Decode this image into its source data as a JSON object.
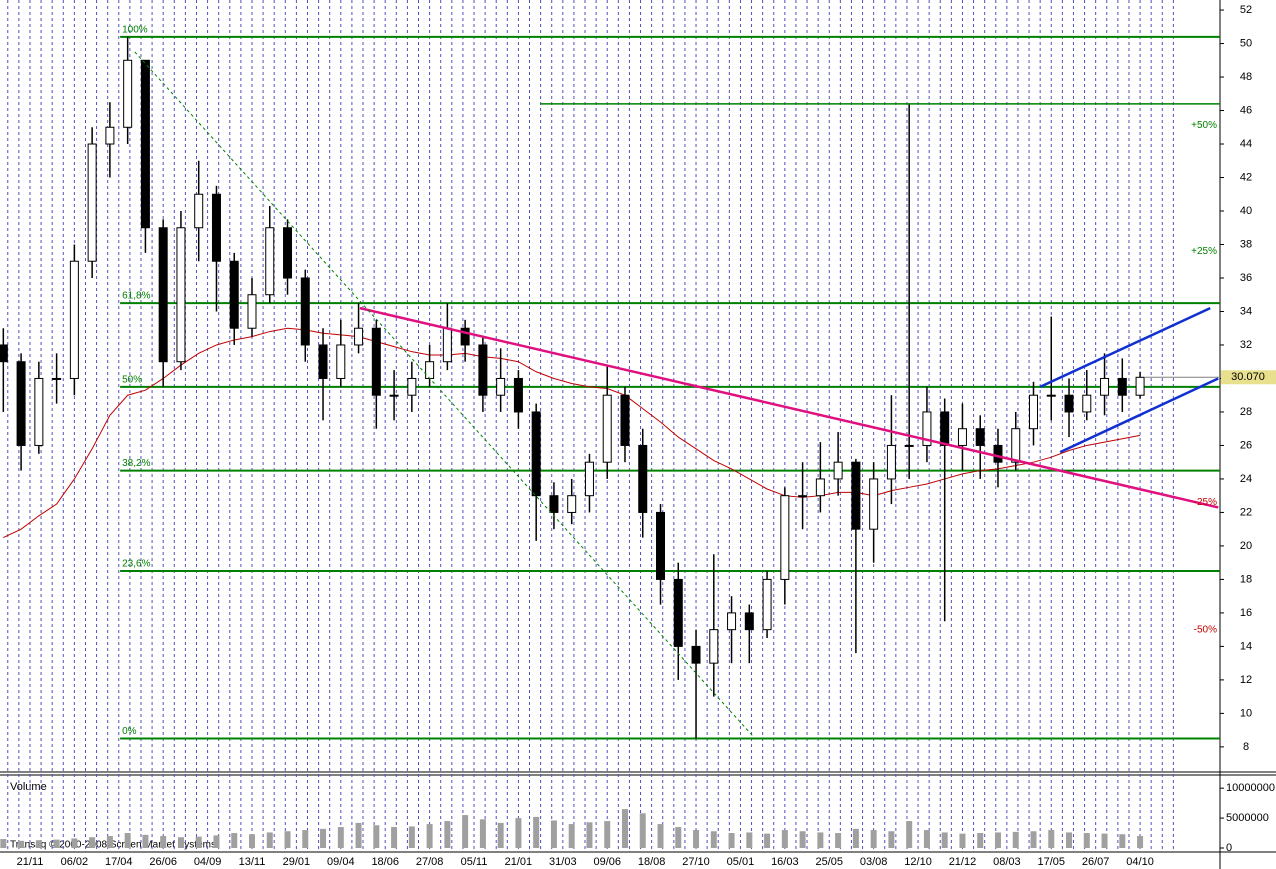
{
  "chart_data": {
    "type": "candlestick",
    "xlim": [
      -6.75,
      268
    ],
    "xticks": [
      {
        "value": 0,
        "label": "21/11"
      },
      {
        "value": 10,
        "label": "06/02"
      },
      {
        "value": 20,
        "label": "17/04"
      },
      {
        "value": 30,
        "label": "26/06"
      },
      {
        "value": 40,
        "label": "04/09"
      },
      {
        "value": 50,
        "label": "13/11"
      },
      {
        "value": 60,
        "label": "29/01"
      },
      {
        "value": 70,
        "label": "09/04"
      },
      {
        "value": 80,
        "label": "18/06"
      },
      {
        "value": 90,
        "label": "27/08"
      },
      {
        "value": 100,
        "label": "05/11"
      },
      {
        "value": 110,
        "label": "21/01"
      },
      {
        "value": 120,
        "label": "31/03"
      },
      {
        "value": 130,
        "label": "09/06"
      },
      {
        "value": 140,
        "label": "18/08"
      },
      {
        "value": 150,
        "label": "27/10"
      },
      {
        "value": 160,
        "label": "05/01"
      },
      {
        "value": 170,
        "label": "16/03"
      },
      {
        "value": 180,
        "label": "25/05"
      },
      {
        "value": 190,
        "label": "03/08"
      },
      {
        "value": 200,
        "label": "12/10"
      },
      {
        "value": 210,
        "label": "21/12"
      },
      {
        "value": 220,
        "label": "08/03"
      },
      {
        "value": 230,
        "label": "17/05"
      },
      {
        "value": 240,
        "label": "26/07"
      },
      {
        "value": 250,
        "label": "04/10"
      }
    ],
    "ylim": [
      6.5,
      52.6
    ],
    "yticks": [
      8,
      10,
      12,
      14,
      16,
      18,
      20,
      22,
      24,
      26,
      28,
      30,
      32,
      34,
      36,
      38,
      40,
      42,
      44,
      46,
      48,
      50,
      52
    ],
    "x": [
      -6,
      -2,
      2,
      6,
      10,
      14,
      18,
      22,
      26,
      30,
      34,
      38,
      42,
      46,
      50,
      54,
      58,
      62,
      66,
      70,
      74,
      78,
      82,
      86,
      90,
      94,
      98,
      102,
      106,
      110,
      114,
      118,
      122,
      126,
      130,
      134,
      138,
      142,
      146,
      150,
      154,
      158,
      162,
      166,
      170,
      174,
      178,
      182,
      186,
      190,
      194,
      198,
      202,
      206,
      210,
      214,
      218,
      222,
      226,
      230,
      234,
      238,
      242,
      246,
      250
    ],
    "open": [
      32,
      31,
      26,
      30,
      30,
      37,
      44,
      45,
      49,
      39,
      31,
      39,
      41,
      37,
      33,
      35,
      39,
      36,
      32,
      30,
      32,
      33,
      29,
      29,
      30,
      31,
      33,
      32,
      29,
      30,
      28,
      23,
      22,
      23,
      25,
      29,
      26,
      22,
      18,
      14,
      13,
      15,
      16,
      15,
      18,
      23,
      23,
      24,
      25,
      21,
      24,
      26,
      26,
      28,
      26,
      27,
      26,
      25,
      27,
      29,
      29,
      28,
      29,
      30,
      29
    ],
    "high": [
      33,
      31.5,
      31,
      31.5,
      38,
      45,
      46.5,
      50.4,
      49,
      39.5,
      40,
      43,
      41.5,
      37.5,
      36,
      40.3,
      39.5,
      36.5,
      33,
      33.5,
      34.5,
      33.5,
      30.5,
      31,
      32,
      34.5,
      33.5,
      32.5,
      31.8,
      30.5,
      28.5,
      23.8,
      24,
      25.5,
      30.8,
      29.5,
      27,
      22.5,
      19,
      15,
      19.5,
      17,
      16.5,
      18.5,
      23.5,
      25,
      26.2,
      26.8,
      25.2,
      25,
      29,
      46.4,
      29.5,
      28.8,
      28.5,
      27.8,
      27,
      28,
      29.8,
      33.7,
      30,
      30.5,
      31.5,
      31.2,
      30.4
    ],
    "low": [
      28,
      24.5,
      25.5,
      28.5,
      29,
      36,
      42,
      44,
      37.5,
      29.5,
      30.5,
      37,
      34,
      32,
      32.5,
      34.5,
      35,
      31,
      27.5,
      29.5,
      31.5,
      27,
      27.5,
      28,
      29.5,
      30.5,
      31,
      28,
      28,
      27,
      20.3,
      21,
      21.3,
      22,
      24,
      25,
      20.5,
      16.5,
      12,
      8.5,
      11,
      13,
      13,
      14.5,
      16.5,
      21,
      22,
      23,
      13.6,
      19,
      22.5,
      24,
      25,
      15.5,
      24.5,
      24,
      23.5,
      24.5,
      26,
      27.5,
      26.5,
      27.5,
      27.8,
      28,
      28.8
    ],
    "close": [
      31,
      26,
      30,
      30,
      37,
      44,
      45,
      49,
      39,
      31,
      39,
      41,
      37,
      33,
      35,
      39,
      36,
      32,
      30,
      32,
      33,
      29,
      29,
      30,
      31,
      33,
      32,
      29,
      30,
      28,
      23,
      22,
      23,
      25,
      29,
      26,
      22,
      18,
      14,
      13,
      15,
      16,
      15,
      18,
      23,
      23,
      24,
      25,
      21,
      24,
      26,
      26,
      28,
      26,
      27,
      26,
      25,
      27,
      29,
      29,
      28,
      29,
      30,
      29,
      30.07
    ],
    "candle_color": "#000000",
    "moving_average": {
      "color": "#c00000",
      "values": [
        20.5,
        21,
        21.8,
        22.5,
        24,
        25.8,
        27.8,
        29,
        29.3,
        30,
        30.8,
        31.5,
        32,
        32.3,
        32.5,
        32.8,
        33,
        32.9,
        32.7,
        32.6,
        32.5,
        32.2,
        31.9,
        31.6,
        31.4,
        31.4,
        31.5,
        31.3,
        31.2,
        31,
        30.4,
        30,
        29.7,
        29.5,
        29.4,
        29,
        28.2,
        27.4,
        26.5,
        25.8,
        25.1,
        24.6,
        24,
        23.4,
        23,
        22.9,
        23,
        23.2,
        23.2,
        23,
        23.3,
        23.5,
        23.7,
        24,
        24.3,
        24.5,
        24.6,
        24.8,
        25,
        25.3,
        25.7,
        26,
        26.2,
        26.4,
        26.6
      ]
    },
    "levels_from": 20.3,
    "levels_color": "#008000",
    "levels": [
      {
        "value": 50.4,
        "label": "100%"
      },
      {
        "value": 34.5,
        "label": "61,8%"
      },
      {
        "value": 29.5,
        "label": "50%"
      },
      {
        "value": 24.5,
        "label": "38,2%"
      },
      {
        "value": 18.5,
        "label": "23,6%"
      },
      {
        "value": 8.5,
        "label": "0%"
      }
    ],
    "lines": [
      {
        "color": "#008000",
        "width": 1.5,
        "dash": false,
        "x": [
          114.9,
          268
        ],
        "y": [
          46.4,
          46.4
        ]
      },
      {
        "color": "#e0107f",
        "width": 2.5,
        "dash": false,
        "x": [
          74.3,
          267.6
        ],
        "y": [
          34.2,
          22.3
        ]
      },
      {
        "color": "#1030d0",
        "width": 2.5,
        "dash": false,
        "x": [
          227.5,
          265.8
        ],
        "y": [
          29.5,
          34.2
        ]
      },
      {
        "color": "#1030d0",
        "width": 2.5,
        "dash": false,
        "x": [
          232,
          267.6
        ],
        "y": [
          25.6,
          30
        ]
      },
      {
        "color": "#008000",
        "width": 1,
        "dash": true,
        "x": [
          23.6,
          163.3
        ],
        "y": [
          49.5,
          8.5
        ]
      }
    ],
    "annotations": [
      {
        "value": 45.1,
        "label": "+50%",
        "color": "#008000"
      },
      {
        "value": 37.6,
        "label": "+25%",
        "color": "#008000"
      },
      {
        "value": 22.6,
        "label": "-25%",
        "color": "#c00000"
      },
      {
        "value": 15.0,
        "label": "-50%",
        "color": "#c00000"
      }
    ],
    "last_price": {
      "value": 30.07,
      "label": "30.070"
    },
    "volume": {
      "title": "Volume",
      "color": "#a0a0a0",
      "ylim": [
        0,
        12200000
      ],
      "yticks": [
        0,
        5000000,
        10000000
      ],
      "values": [
        1500000,
        1200000,
        1300000,
        1400000,
        1600000,
        1800000,
        2000000,
        2500000,
        2200000,
        2000000,
        1800000,
        1900000,
        2100000,
        2500000,
        2300000,
        2600000,
        2800000,
        3000000,
        3200000,
        3500000,
        4200000,
        3800000,
        3500000,
        3600000,
        4000000,
        4500000,
        5500000,
        4800000,
        4200000,
        5000000,
        5200000,
        4600000,
        4000000,
        4300000,
        4500000,
        6500000,
        5800000,
        4000000,
        3500000,
        3000000,
        2800000,
        2500000,
        2600000,
        2400000,
        3000000,
        2800000,
        2600000,
        2500000,
        3200000,
        3000000,
        2800000,
        4500000,
        3000000,
        2600000,
        2400000,
        2500000,
        2600000,
        2700000,
        2800000,
        3000000,
        2600000,
        2500000,
        2400000,
        2300000,
        2000000
      ]
    },
    "copyright": "Transaq © 2000-2008 Screen Market Systems"
  }
}
